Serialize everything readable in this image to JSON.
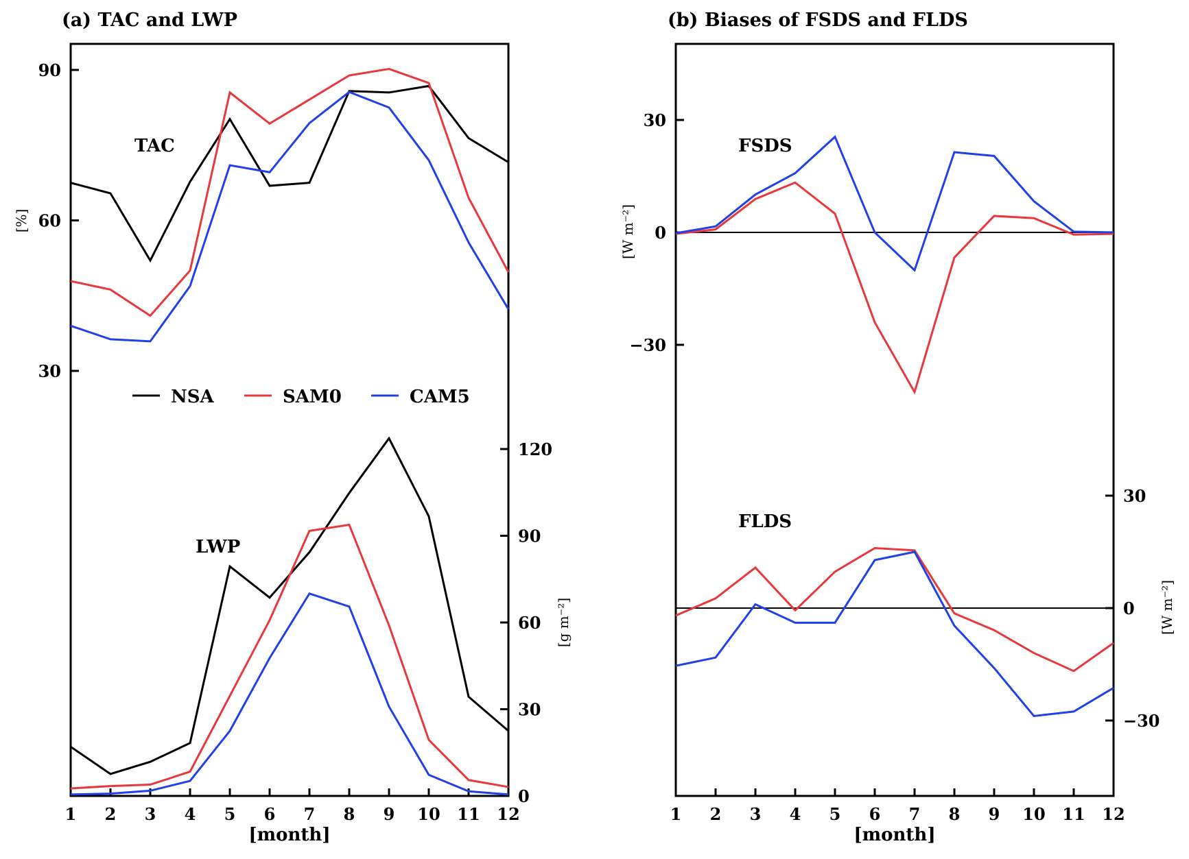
{
  "colors": {
    "NSA": "#000000",
    "SAM0": "#e8383c",
    "CAM5": "#2040e8"
  },
  "chart_data": [
    {
      "type": "line",
      "title": "(a) TAC and LWP",
      "xlabel": "[month]",
      "x": [
        1,
        2,
        3,
        4,
        5,
        6,
        7,
        8,
        9,
        10,
        11,
        12
      ],
      "legend": [
        "NSA",
        "SAM0",
        "CAM5"
      ],
      "legend_placement": "center",
      "panels": [
        {
          "label": "TAC",
          "ylabel": "[%]",
          "axis": "left",
          "yticks": [
            30,
            60,
            90
          ],
          "series": [
            {
              "name": "NSA",
              "values": [
                67.5,
                65.4,
                52.0,
                67.7,
                80.2,
                66.9,
                67.5,
                85.8,
                85.5,
                86.8,
                76.4,
                71.6
              ]
            },
            {
              "name": "SAM0",
              "values": [
                47.9,
                46.2,
                41.0,
                50.0,
                85.5,
                79.3,
                84.1,
                88.9,
                90.2,
                87.4,
                64.5,
                49.7
              ]
            },
            {
              "name": "CAM5",
              "values": [
                39.0,
                36.3,
                35.9,
                46.9,
                71.0,
                69.6,
                79.4,
                85.6,
                82.5,
                72.0,
                55.6,
                42.3
              ]
            }
          ]
        },
        {
          "label": "LWP",
          "ylabel": "[g m⁻²]",
          "axis": "right",
          "yticks": [
            0,
            30,
            60,
            90,
            120
          ],
          "series": [
            {
              "name": "NSA",
              "values": [
                17.0,
                7.6,
                11.8,
                18.3,
                79.4,
                68.6,
                84.3,
                104.8,
                123.7,
                96.7,
                34.3,
                22.5
              ]
            },
            {
              "name": "SAM0",
              "values": [
                2.6,
                3.4,
                3.9,
                8.4,
                34.6,
                60.8,
                91.7,
                93.8,
                59.0,
                19.4,
                5.5,
                3.1
              ]
            },
            {
              "name": "CAM5",
              "values": [
                0.5,
                0.8,
                1.8,
                5.2,
                22.5,
                47.7,
                70.0,
                65.5,
                30.9,
                7.3,
                1.6,
                0.5
              ]
            }
          ]
        }
      ]
    },
    {
      "type": "line",
      "title": "(b) Biases of FSDS and FLDS",
      "xlabel": "[month]",
      "x": [
        1,
        2,
        3,
        4,
        5,
        6,
        7,
        8,
        9,
        10,
        11,
        12
      ],
      "panels": [
        {
          "label": "FSDS",
          "ylabel": "[W m⁻²]",
          "axis": "left",
          "yticks": [
            -30,
            0,
            30
          ],
          "series": [
            {
              "name": "SAM0",
              "values": [
                -0.4,
                0.8,
                8.9,
                13.3,
                5.0,
                -24.0,
                -42.6,
                -6.7,
                4.4,
                3.8,
                -0.6,
                -0.4
              ]
            },
            {
              "name": "CAM5",
              "values": [
                -0.2,
                1.6,
                10.1,
                15.8,
                25.5,
                0.0,
                -10.1,
                21.4,
                20.4,
                8.3,
                0.2,
                0.0
              ]
            }
          ]
        },
        {
          "label": "FLDS",
          "ylabel": "[W m⁻²]",
          "axis": "right",
          "yticks": [
            -30,
            0,
            30
          ],
          "series": [
            {
              "name": "SAM0",
              "values": [
                -2.0,
                2.6,
                10.8,
                -0.6,
                9.7,
                16.0,
                15.4,
                -1.4,
                -5.9,
                -12.0,
                -16.8,
                -9.3
              ]
            },
            {
              "name": "CAM5",
              "values": [
                -15.4,
                -13.2,
                1.0,
                -3.9,
                -3.9,
                12.8,
                15.0,
                -4.7,
                -16.0,
                -28.8,
                -27.6,
                -21.3
              ]
            }
          ]
        }
      ]
    }
  ]
}
